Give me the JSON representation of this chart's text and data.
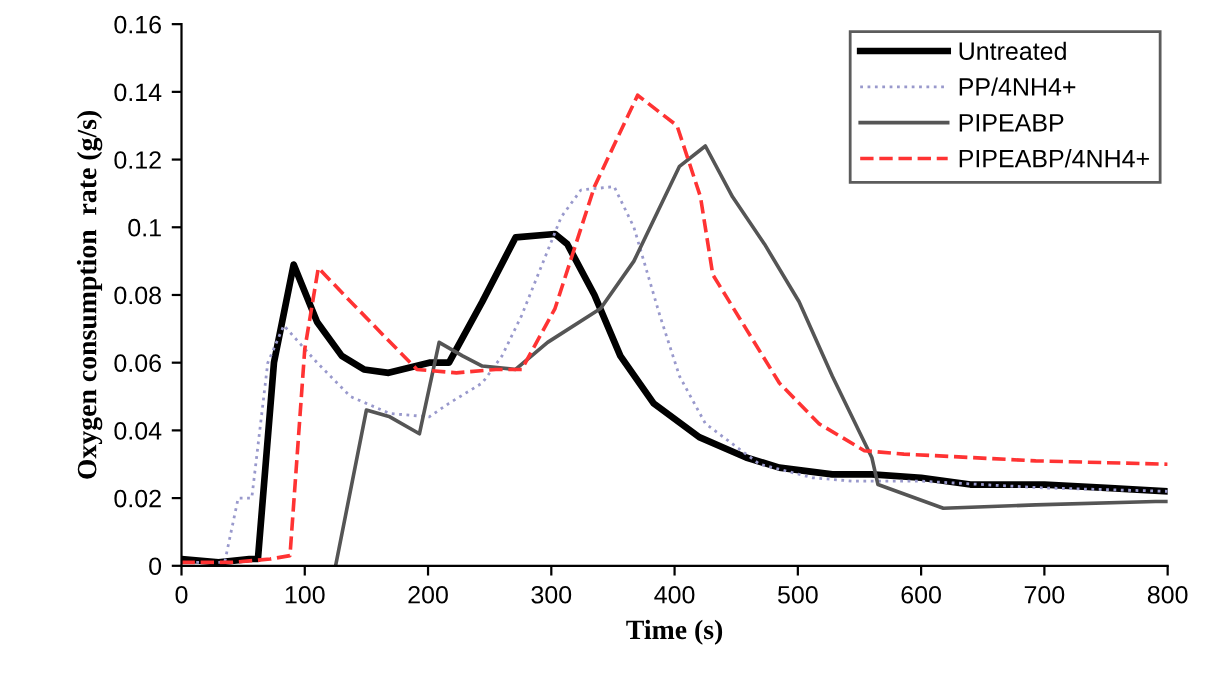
{
  "chart_data": {
    "type": "line",
    "xlabel": "Time (s)",
    "ylabel": "Oxygen consumption  rate (g/s)",
    "xlim": [
      0,
      800
    ],
    "xticks": [
      0,
      100,
      200,
      300,
      400,
      500,
      600,
      700,
      800
    ],
    "ylim": [
      0,
      0.16
    ],
    "yticks": [
      0,
      0.02,
      0.04,
      0.06,
      0.08,
      0.1,
      0.12,
      0.14,
      0.16
    ],
    "grid": false,
    "legend": "top right",
    "marker": "none",
    "series": [
      {
        "name": "Untreated",
        "color": "#000000",
        "line_style": "solid",
        "x": [
          0,
          30,
          55,
          62,
          75,
          91,
          110,
          130,
          148,
          168,
          201,
          217,
          244,
          271,
          303,
          313,
          335,
          356,
          383,
          420,
          458,
          485,
          528,
          560,
          600,
          640,
          700,
          750,
          800
        ],
        "values": [
          0.002,
          0.001,
          0.002,
          0.002,
          0.06,
          0.089,
          0.072,
          0.062,
          0.058,
          0.057,
          0.06,
          0.06,
          0.078,
          0.097,
          0.098,
          0.095,
          0.08,
          0.062,
          0.048,
          0.038,
          0.032,
          0.029,
          0.027,
          0.027,
          0.026,
          0.024,
          0.024,
          0.023,
          0.022
        ]
      },
      {
        "name": "PP/4NH4+",
        "color": "#9999cc",
        "line_style": "dotted",
        "x": [
          0,
          35,
          46,
          57,
          70,
          83,
          110,
          137,
          169,
          201,
          217,
          244,
          260,
          276,
          308,
          324,
          351,
          367,
          388,
          404,
          425,
          469,
          512,
          544,
          600,
          700,
          800
        ],
        "values": [
          0.001,
          0.001,
          0.02,
          0.02,
          0.06,
          0.071,
          0.06,
          0.05,
          0.045,
          0.044,
          0.048,
          0.054,
          0.062,
          0.074,
          0.103,
          0.111,
          0.112,
          0.1,
          0.074,
          0.056,
          0.042,
          0.03,
          0.026,
          0.025,
          0.025,
          0.023,
          0.022
        ]
      },
      {
        "name": "PIPEABP",
        "color": "#555555",
        "line_style": "solid",
        "x": [
          125,
          150,
          169,
          193,
          209,
          228,
          244,
          271,
          297,
          340,
          367,
          404,
          425,
          447,
          473,
          501,
          528,
          560,
          565,
          618,
          693,
          790,
          800
        ],
        "values": [
          0,
          0.046,
          0.044,
          0.039,
          0.066,
          0.062,
          0.059,
          0.058,
          0.066,
          0.076,
          0.09,
          0.118,
          0.124,
          0.109,
          0.095,
          0.078,
          0.056,
          0.032,
          0.024,
          0.017,
          0.018,
          0.019,
          0.019
        ]
      },
      {
        "name": "PIPEABP/4NH4+",
        "color": "#ff3333",
        "line_style": "dashed",
        "x": [
          0,
          40,
          72,
          88,
          100,
          111,
          132,
          164,
          191,
          223,
          255,
          276,
          303,
          335,
          370,
          402,
          421,
          431,
          458,
          485,
          517,
          554,
          586,
          693,
          800
        ],
        "values": [
          0.001,
          0.001,
          0.002,
          0.003,
          0.064,
          0.088,
          0.08,
          0.068,
          0.058,
          0.057,
          0.058,
          0.058,
          0.076,
          0.112,
          0.139,
          0.13,
          0.109,
          0.086,
          0.07,
          0.054,
          0.042,
          0.034,
          0.033,
          0.031,
          0.03
        ]
      }
    ]
  }
}
